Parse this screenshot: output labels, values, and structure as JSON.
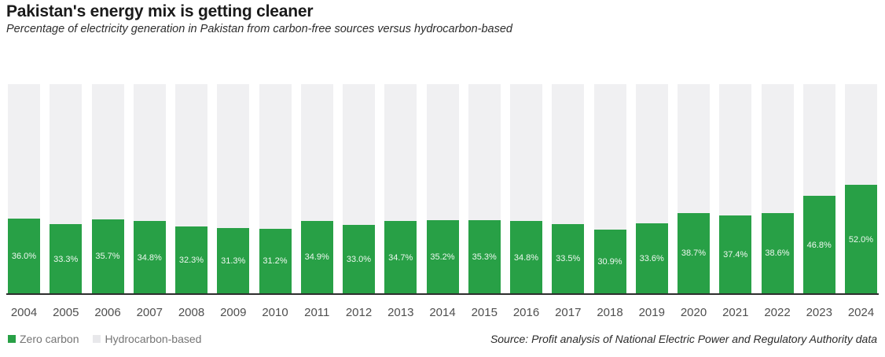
{
  "header": {
    "title": "Pakistan's energy mix is getting cleaner",
    "subtitle": "Percentage of electricity generation in Pakistan from carbon-free sources versus hydrocarbon-based"
  },
  "legend": {
    "items": [
      {
        "label": "Zero carbon",
        "color": "#28a046"
      },
      {
        "label": "Hydrocarbon-based",
        "color": "#e8e8eb"
      }
    ]
  },
  "source": "Source: Profit analysis of National Electric Power and Regulatory Authority data",
  "colors": {
    "zero_carbon": "#28a046",
    "hydrocarbon": "#f0f0f2",
    "axis": "#2e2e2e",
    "title_text": "#1a1a1a",
    "year_text": "#4f4f4f"
  },
  "chart_data": {
    "type": "bar",
    "stacked": true,
    "unit": "%",
    "ylim": [
      0,
      100
    ],
    "grid": false,
    "legend_position": "bottom-left",
    "categories": [
      "2004",
      "2005",
      "2006",
      "2007",
      "2008",
      "2009",
      "2010",
      "2011",
      "2012",
      "2013",
      "2014",
      "2015",
      "2016",
      "2017",
      "2018",
      "2019",
      "2020",
      "2021",
      "2022",
      "2023",
      "2024"
    ],
    "series": [
      {
        "name": "Zero carbon",
        "color": "#28a046",
        "values": [
          36.0,
          33.3,
          35.7,
          34.8,
          32.3,
          31.3,
          31.2,
          34.9,
          33.0,
          34.7,
          35.2,
          35.3,
          34.8,
          33.5,
          30.9,
          33.6,
          38.7,
          37.4,
          38.6,
          46.8,
          52.0
        ]
      },
      {
        "name": "Hydrocarbon-based",
        "color": "#f0f0f2",
        "values": [
          64.0,
          66.7,
          64.3,
          65.2,
          67.7,
          68.7,
          68.8,
          65.1,
          67.0,
          65.3,
          64.8,
          64.7,
          65.2,
          66.5,
          69.1,
          66.4,
          61.3,
          62.6,
          61.4,
          53.2,
          48.0
        ]
      }
    ],
    "data_labels": "zero-carbon values shown inside green bars as percentages with one decimal"
  }
}
